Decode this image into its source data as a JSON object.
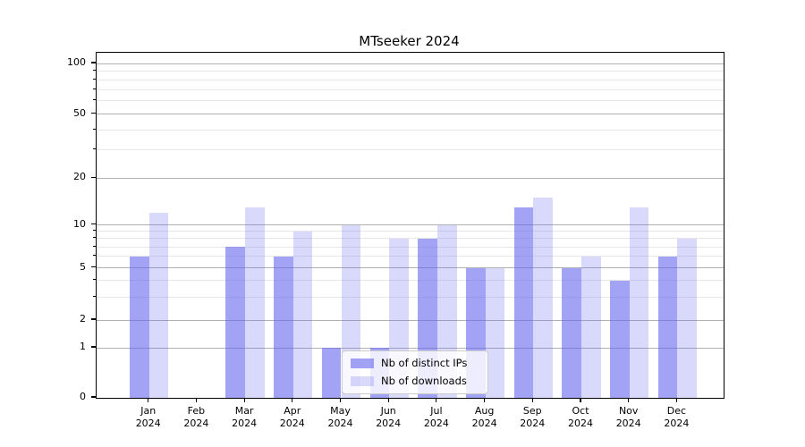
{
  "chart_data": {
    "type": "bar",
    "title": "MTseeker 2024",
    "year": "2024",
    "months": [
      "Jan",
      "Feb",
      "Mar",
      "Apr",
      "May",
      "Jun",
      "Jul",
      "Aug",
      "Sep",
      "Oct",
      "Nov",
      "Dec"
    ],
    "categories": [
      "Jan 2024",
      "Feb 2024",
      "Mar 2024",
      "Apr 2024",
      "May 2024",
      "Jun 2024",
      "Jul 2024",
      "Aug 2024",
      "Sep 2024",
      "Oct 2024",
      "Nov 2024",
      "Dec 2024"
    ],
    "series": [
      {
        "name": "Nb of distinct IPs",
        "color": "rgba(102,102,238,0.6)",
        "values": [
          6,
          0,
          7,
          6,
          1,
          1,
          8,
          5,
          13,
          5,
          4,
          6
        ]
      },
      {
        "name": "Nb of downloads",
        "color": "rgba(102,102,238,0.25)",
        "values": [
          12,
          0,
          13,
          9,
          10,
          8,
          10,
          5,
          15,
          6,
          13,
          8
        ]
      }
    ],
    "yscale": "log-like",
    "ylim": [
      0,
      115
    ],
    "y_major_ticks": [
      0,
      1,
      2,
      5,
      10,
      20,
      50,
      100
    ],
    "y_minor_ticks": [
      3,
      4,
      6,
      7,
      8,
      9,
      30,
      40,
      60,
      70,
      80,
      90
    ],
    "grid": "on",
    "legend_position": "inside-bottom-center"
  },
  "colors": {
    "bar_base": "#6666ee",
    "grid_major": "#b0b0b0",
    "grid_minor": "#e7e7e7",
    "axis": "#000000",
    "legend_border": "#cccccc"
  }
}
